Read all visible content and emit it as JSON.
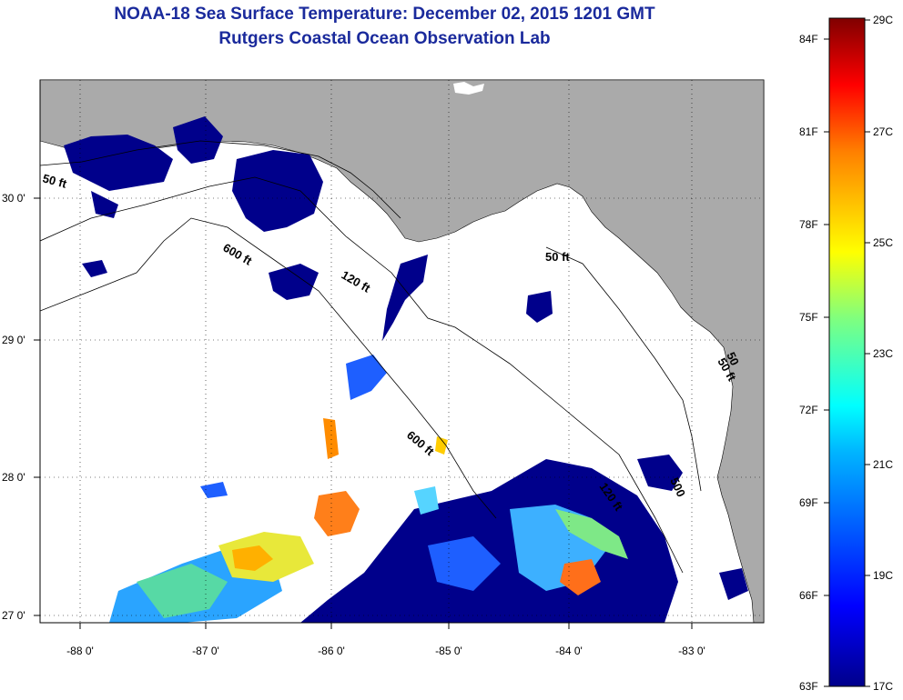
{
  "title": {
    "line1": "NOAA-18 Sea Surface Temperature:  December 02, 2015 1201 GMT",
    "line2": "Rutgers Coastal Ocean Observation Lab"
  },
  "map": {
    "x_ticks": [
      "-88 0'",
      "-87 0'",
      "-86 0'",
      "-85 0'",
      "-84 0'",
      "-83 0'"
    ],
    "y_ticks": [
      "30 0'",
      "29 0'",
      "28 0'",
      "27 0'"
    ],
    "contours": [
      "50 ft",
      "600 ft",
      "120 ft",
      "50 ft",
      "600 ft",
      "120 ft",
      "50 ft",
      "500",
      "50"
    ],
    "colors": {
      "land": "#aaaaaa",
      "ocean": "#ffffff",
      "cold": "#00008b"
    }
  },
  "colorbar": {
    "fahrenheit": [
      "84F",
      "81F",
      "78F",
      "75F",
      "72F",
      "69F",
      "66F",
      "63F"
    ],
    "celsius": [
      "29C",
      "27C",
      "25C",
      "23C",
      "21C",
      "19C",
      "17C"
    ],
    "range_c": [
      17,
      29
    ]
  }
}
